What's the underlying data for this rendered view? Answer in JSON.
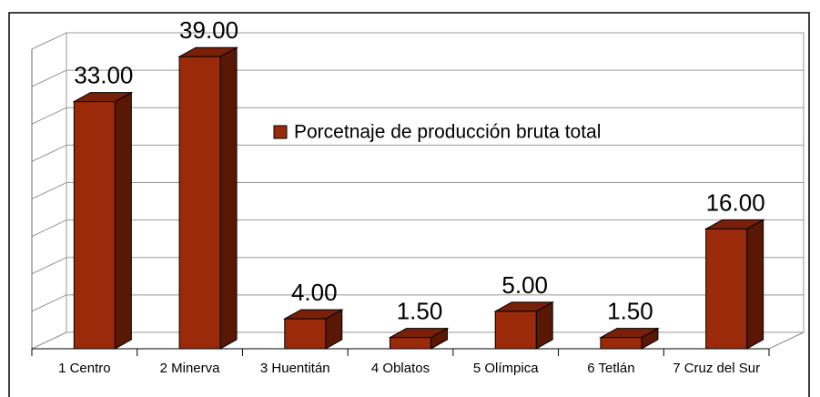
{
  "chart_data": {
    "type": "bar3d",
    "categories": [
      "1 Centro",
      "2 Minerva",
      "3 Huentitán",
      "4 Oblatos",
      "5 Olímpica",
      "6 Tetlán",
      "7 Cruz del Sur"
    ],
    "series": [
      {
        "name": "Porcetnaje de producción bruta total",
        "color": "#9b2a0a",
        "values": [
          33,
          39,
          4,
          1.5,
          5,
          1.5,
          16
        ],
        "value_labels": [
          "33.00",
          "39.00",
          "4.00",
          "1.50",
          "5.00",
          "1.50",
          "16.00"
        ]
      }
    ],
    "ylim": [
      0,
      40
    ],
    "yticks": [
      0,
      5,
      10,
      15,
      20,
      25,
      30,
      35,
      40
    ],
    "grid": true,
    "legend": "top-center"
  }
}
